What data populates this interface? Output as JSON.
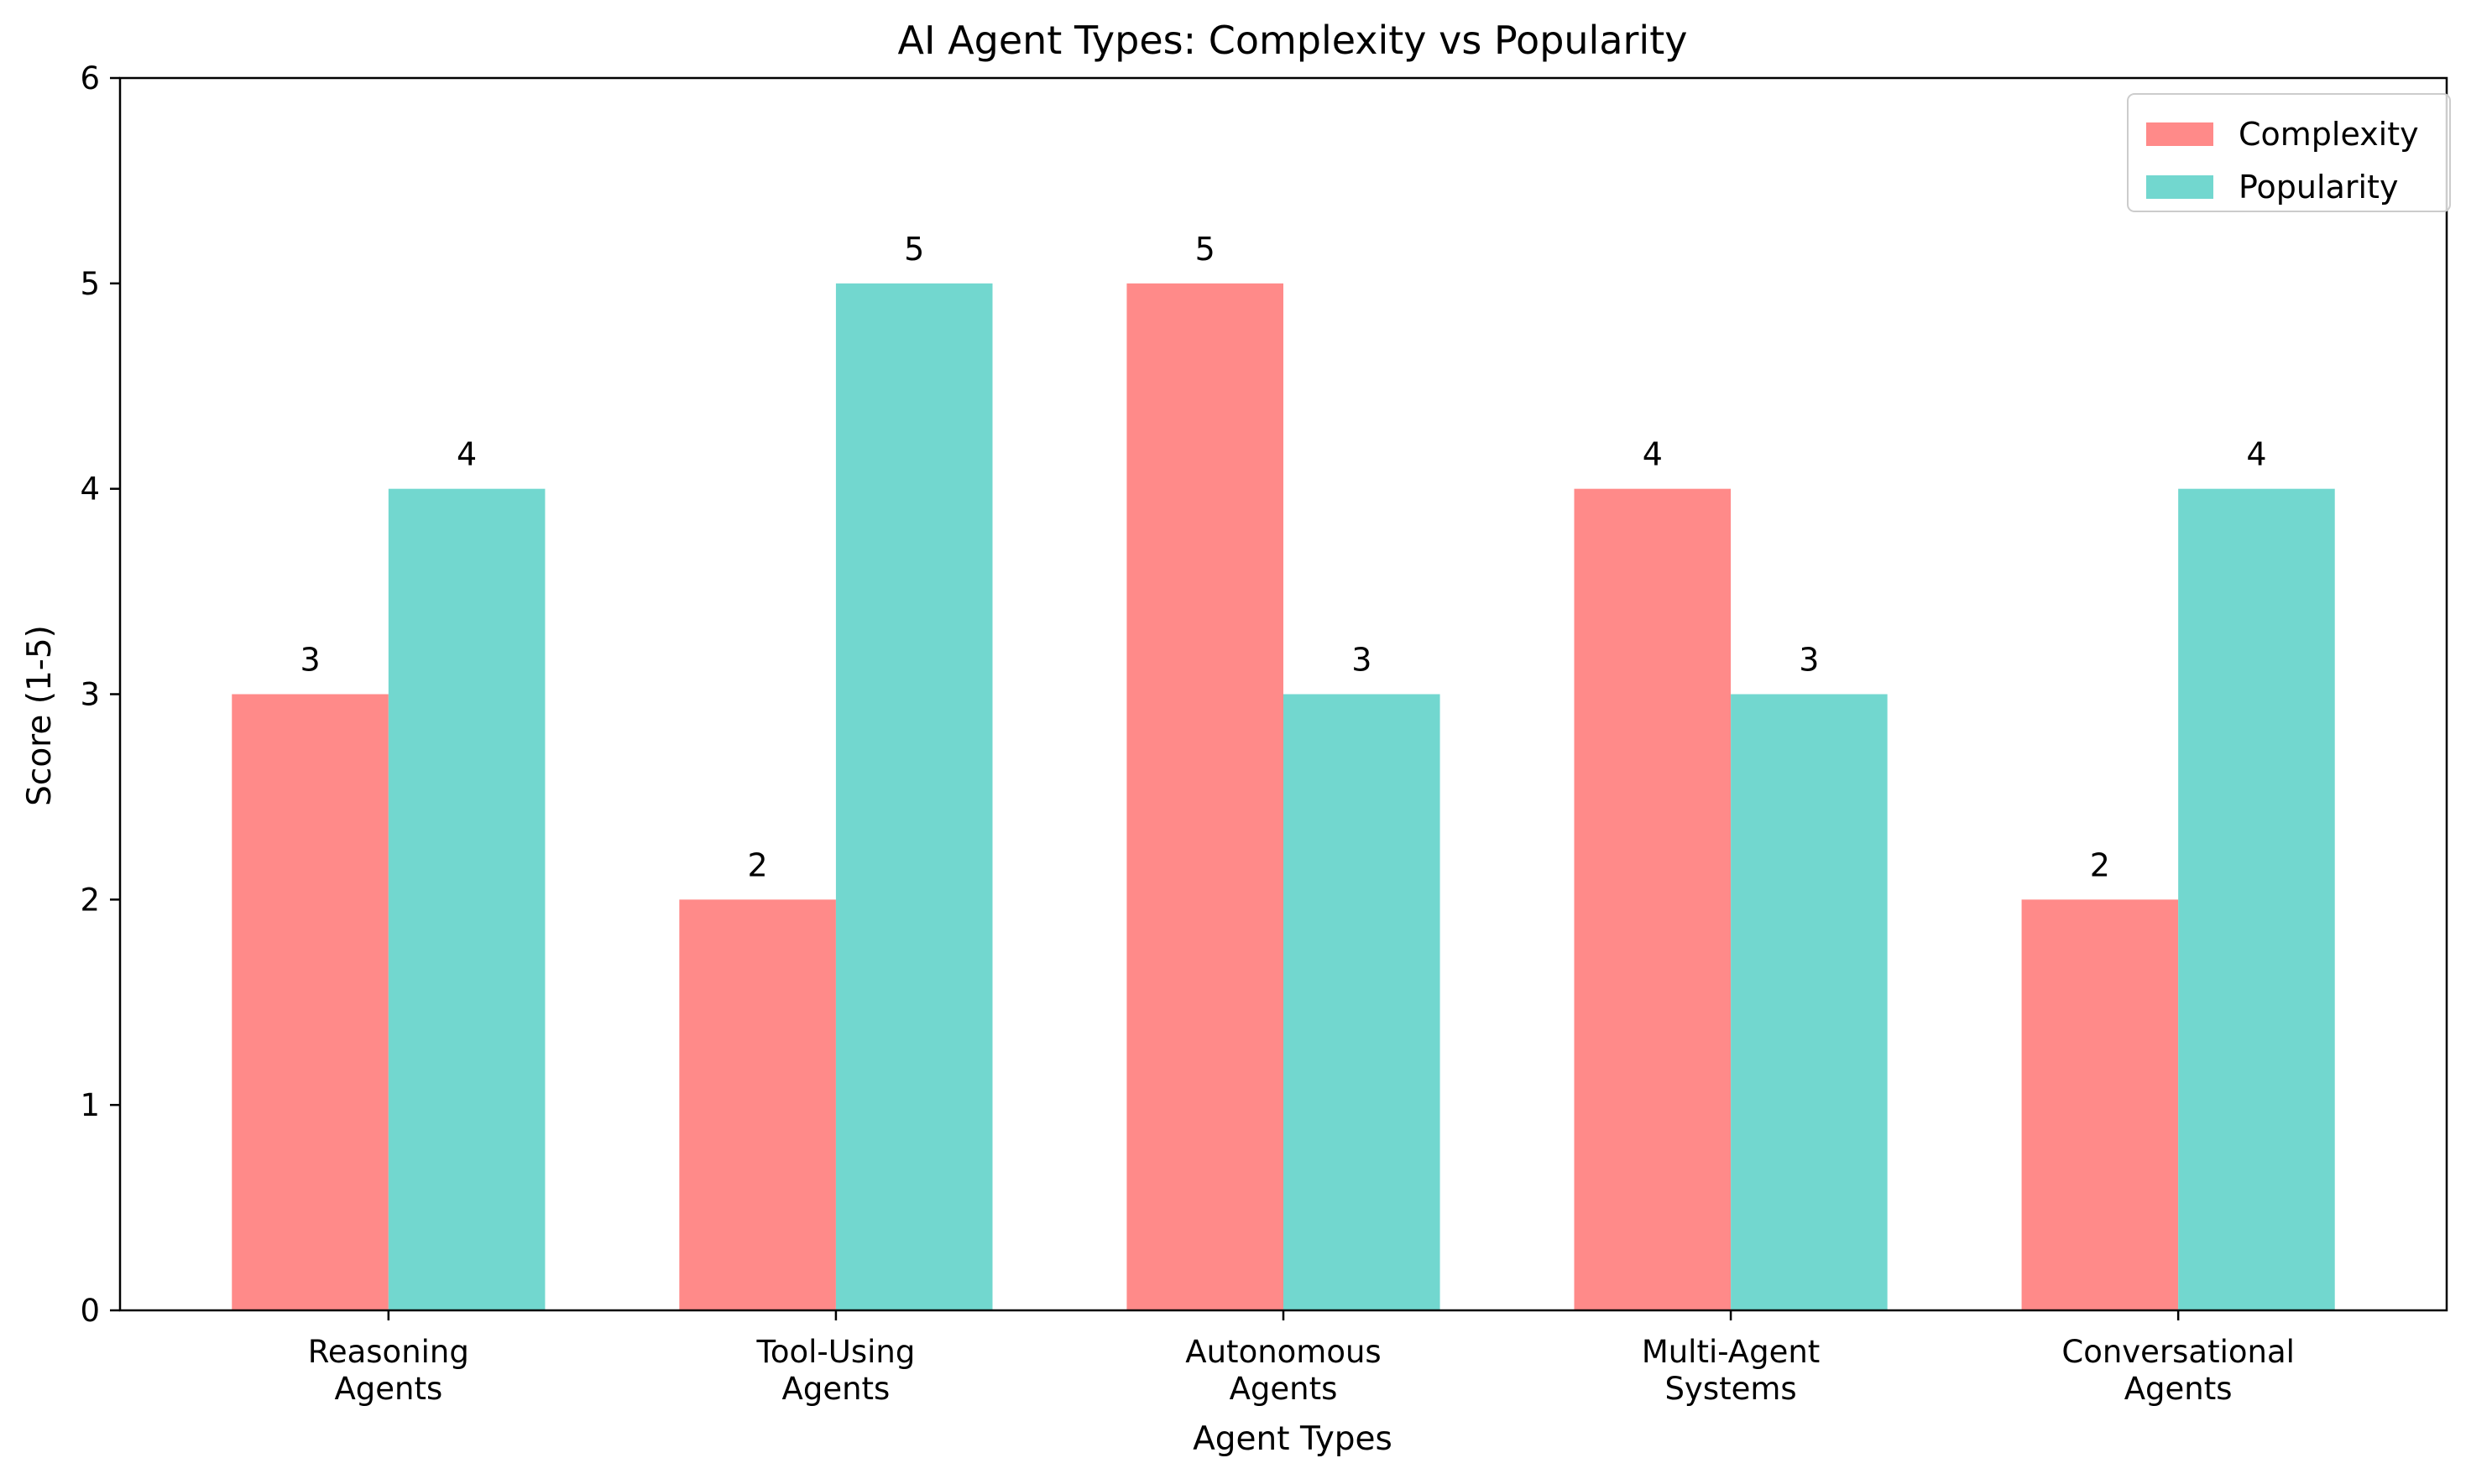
{
  "chart_data": {
    "type": "bar",
    "title": "AI Agent Types: Complexity vs Popularity",
    "xlabel": "Agent Types",
    "ylabel": "Score (1-5)",
    "categories": [
      [
        "Reasoning",
        "Agents"
      ],
      [
        "Tool-Using",
        "Agents"
      ],
      [
        "Autonomous",
        "Agents"
      ],
      [
        "Multi-Agent",
        "Systems"
      ],
      [
        "Conversational",
        "Agents"
      ]
    ],
    "series": [
      {
        "name": "Complexity",
        "color": "#FF8A89",
        "values": [
          3,
          2,
          5,
          4,
          2
        ]
      },
      {
        "name": "Popularity",
        "color": "#72D7CF",
        "values": [
          4,
          5,
          3,
          3,
          4
        ]
      }
    ],
    "ylim": [
      0,
      6
    ],
    "yticks": [
      0,
      1,
      2,
      3,
      4,
      5,
      6
    ],
    "grid": false,
    "legend_position": "top-right"
  }
}
